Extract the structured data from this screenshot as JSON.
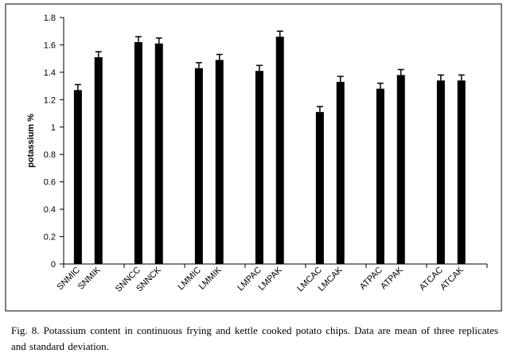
{
  "caption": "Fig. 8. Potassium content in continuous frying and kettle cooked potato chips. Data are mean of three replicates and standard deviation.",
  "chart_data": {
    "type": "bar",
    "ylabel": "potassium %",
    "xlabel": "",
    "ylim": [
      0,
      1.8
    ],
    "yticks": [
      0,
      0.2,
      0.4,
      0.6,
      0.8,
      1,
      1.2,
      1.4,
      1.6,
      1.8
    ],
    "categories": [
      "SNMIC",
      "SNMIK",
      "SNNCC",
      "SNNCK",
      "LMMIC",
      "LMMIK",
      "LMPAC",
      "LMPAK",
      "LMCAC",
      "LMCAK",
      "ATPAC",
      "ATPAK",
      "ATCAC",
      "ATCAK"
    ],
    "values": [
      1.27,
      1.51,
      1.62,
      1.61,
      1.43,
      1.49,
      1.41,
      1.66,
      1.11,
      1.33,
      1.28,
      1.38,
      1.34,
      1.34
    ],
    "errors": [
      0.04,
      0.04,
      0.04,
      0.04,
      0.04,
      0.04,
      0.04,
      0.04,
      0.04,
      0.04,
      0.04,
      0.04,
      0.04,
      0.04
    ],
    "bar_color": "#000000",
    "grid": false,
    "legend": "none"
  }
}
